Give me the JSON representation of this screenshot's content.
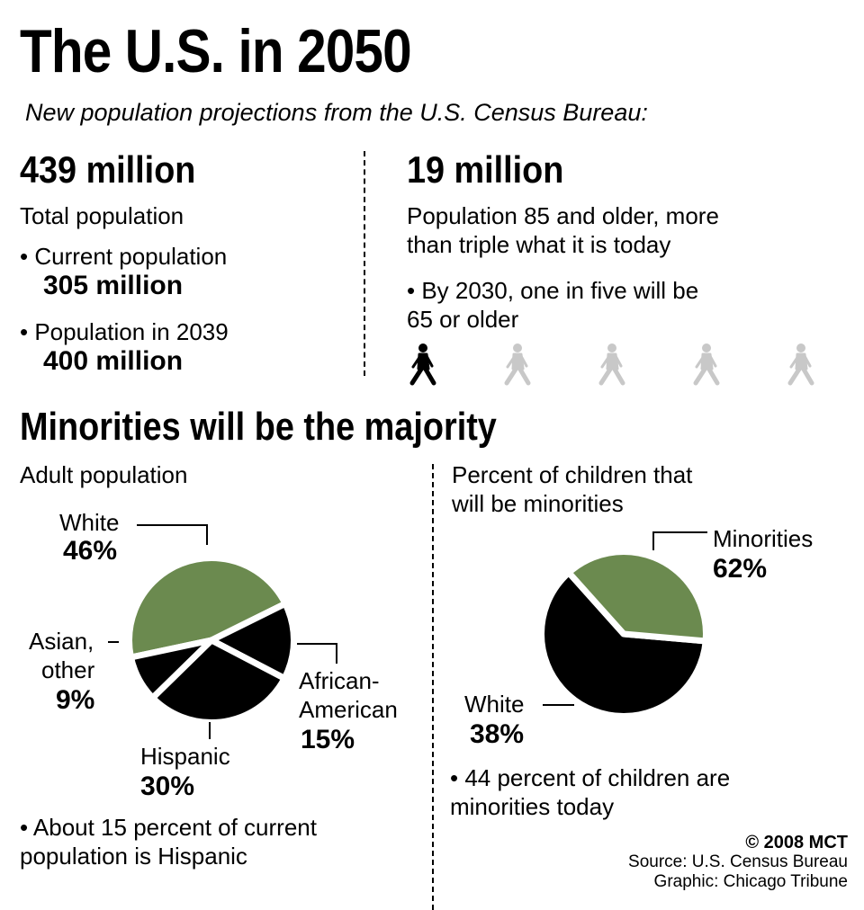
{
  "header": {
    "title": "The U.S. in 2050",
    "subtitle": "New population projections from the U.S. Census Bureau:"
  },
  "total_pop": {
    "figure": "439 million",
    "caption": "Total population",
    "current_label": "• Current population",
    "current_value": "305 million",
    "y2039_label": "• Population in 2039",
    "y2039_value": "400 million"
  },
  "elderly": {
    "figure": "19 million",
    "caption_line1": "Population 85 and older, more",
    "caption_line2": "than triple what it is today",
    "note_line1": "• By 2030, one in five will be",
    "note_line2": "65 or older",
    "walker_count": 5,
    "highlighted_walkers": 1,
    "colors": {
      "highlight": "#000000",
      "dim": "#c8c8c8"
    },
    "icon": "walking-person-icon"
  },
  "minorities_title": "Minorities will be the majority",
  "adult": {
    "heading": "Adult population",
    "slices": [
      {
        "line1": "White",
        "line2": "",
        "pct": "46%"
      },
      {
        "line1": "African-",
        "line2": "American",
        "pct": "15%"
      },
      {
        "line1": "Hispanic",
        "line2": "",
        "pct": "30%"
      },
      {
        "line1": "Asian,",
        "line2": "other",
        "pct": "9%"
      }
    ],
    "note_line1": "• About 15 percent of current",
    "note_line2": "population is Hispanic"
  },
  "children": {
    "heading_line1": "Percent of children that",
    "heading_line2": "will be minorities",
    "slices": [
      {
        "label": "Minorities",
        "pct": "62%"
      },
      {
        "label": "White",
        "pct": "38%"
      }
    ],
    "note_line1": "• 44 percent of children are",
    "note_line2": "minorities today"
  },
  "credits": {
    "copyright": "© 2008 MCT",
    "source": "Source: U.S. Census Bureau",
    "graphic": "Graphic: Chicago Tribune"
  },
  "chart_data": [
    {
      "type": "pie",
      "title": "Adult population",
      "categories": [
        "White",
        "African-American",
        "Hispanic",
        "Asian, other"
      ],
      "values": [
        46,
        15,
        30,
        9
      ],
      "colors": [
        "#6b8a4f",
        "#000000",
        "#000000",
        "#000000"
      ]
    },
    {
      "type": "pie",
      "title": "Percent of children that will be minorities",
      "categories": [
        "Minorities",
        "White"
      ],
      "values": [
        62,
        38
      ],
      "colors": [
        "#000000",
        "#6b8a4f"
      ]
    }
  ]
}
